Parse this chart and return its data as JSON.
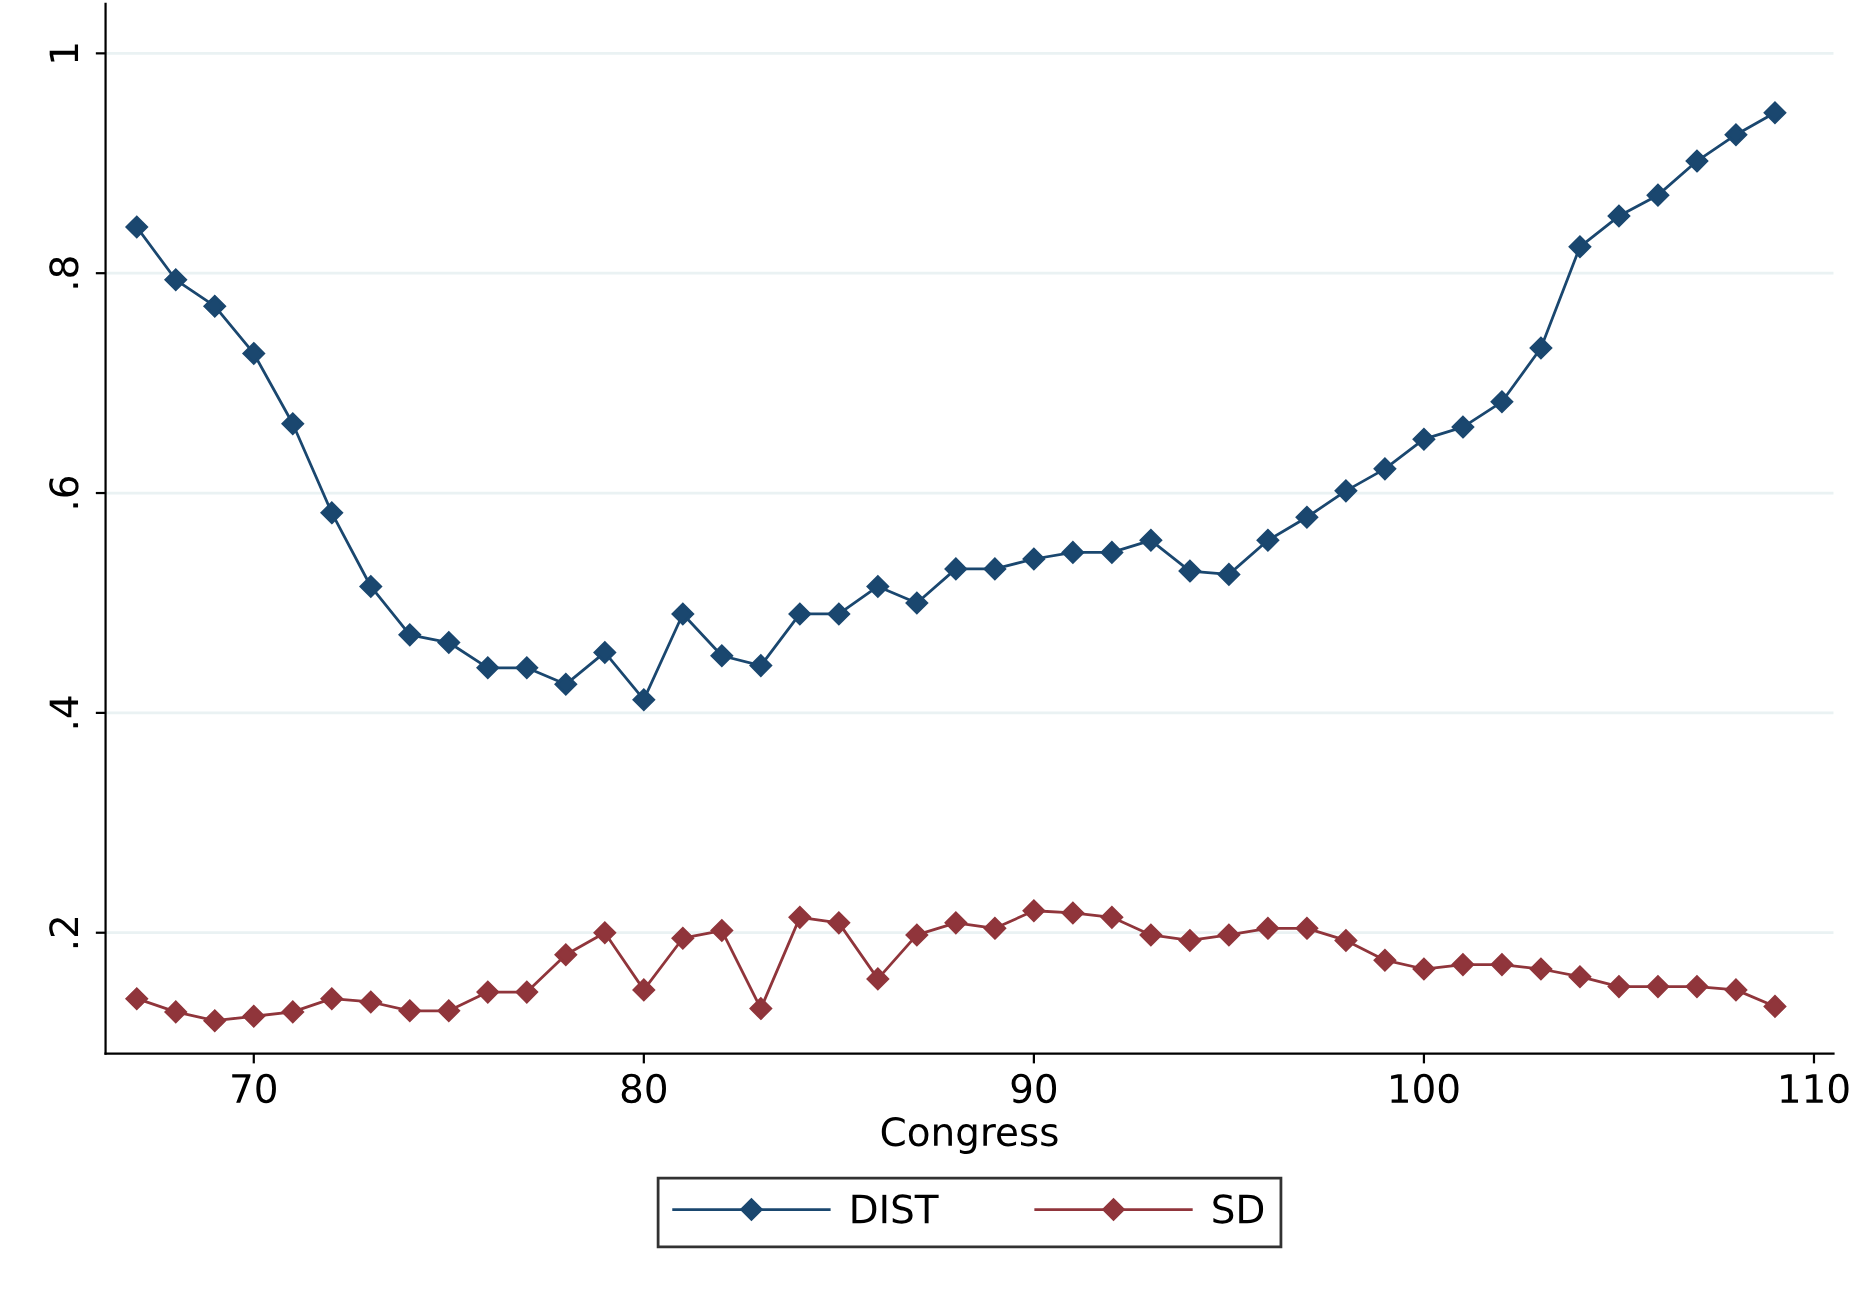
{
  "chart_data": {
    "type": "line",
    "xlabel": "Congress",
    "x": [
      67,
      68,
      69,
      70,
      71,
      72,
      73,
      74,
      75,
      76,
      77,
      78,
      79,
      80,
      81,
      82,
      83,
      84,
      85,
      86,
      87,
      88,
      89,
      90,
      91,
      92,
      93,
      94,
      95,
      96,
      97,
      98,
      99,
      100,
      101,
      102,
      103,
      104,
      105,
      106,
      107,
      108,
      109
    ],
    "series": [
      {
        "name": "DIST",
        "color": "#1a476f",
        "values": [
          0.842,
          0.794,
          0.77,
          0.727,
          0.663,
          0.582,
          0.515,
          0.471,
          0.464,
          0.441,
          0.441,
          0.426,
          0.455,
          0.412,
          0.49,
          0.452,
          0.443,
          0.49,
          0.49,
          0.515,
          0.5,
          0.531,
          0.531,
          0.54,
          0.546,
          0.546,
          0.557,
          0.529,
          0.526,
          0.557,
          0.578,
          0.602,
          0.622,
          0.649,
          0.66,
          0.683,
          0.732,
          0.824,
          0.852,
          0.871,
          0.902,
          0.926,
          0.946
        ]
      },
      {
        "name": "SD",
        "color": "#90353b",
        "values": [
          0.14,
          0.128,
          0.12,
          0.124,
          0.128,
          0.14,
          0.137,
          0.129,
          0.129,
          0.146,
          0.146,
          0.18,
          0.2,
          0.148,
          0.195,
          0.202,
          0.131,
          0.214,
          0.209,
          0.158,
          0.198,
          0.209,
          0.204,
          0.22,
          0.218,
          0.214,
          0.198,
          0.193,
          0.198,
          0.204,
          0.204,
          0.193,
          0.175,
          0.167,
          0.171,
          0.171,
          0.167,
          0.16,
          0.151,
          0.151,
          0.151,
          0.148,
          0.133
        ]
      }
    ],
    "xlim": [
      66.2,
      110.5
    ],
    "ylim": [
      0.09,
      1.045
    ],
    "xticks": [
      70,
      80,
      90,
      100,
      110
    ],
    "yticks": [
      {
        "value": 0.2,
        "label": ".2"
      },
      {
        "value": 0.4,
        "label": ".4"
      },
      {
        "value": 0.6,
        "label": ".6"
      },
      {
        "value": 0.8,
        "label": ".8"
      },
      {
        "value": 1,
        "label": "1"
      }
    ],
    "grid": "y",
    "legend": "bottom",
    "marker": "diamond",
    "line_style": "solid"
  }
}
